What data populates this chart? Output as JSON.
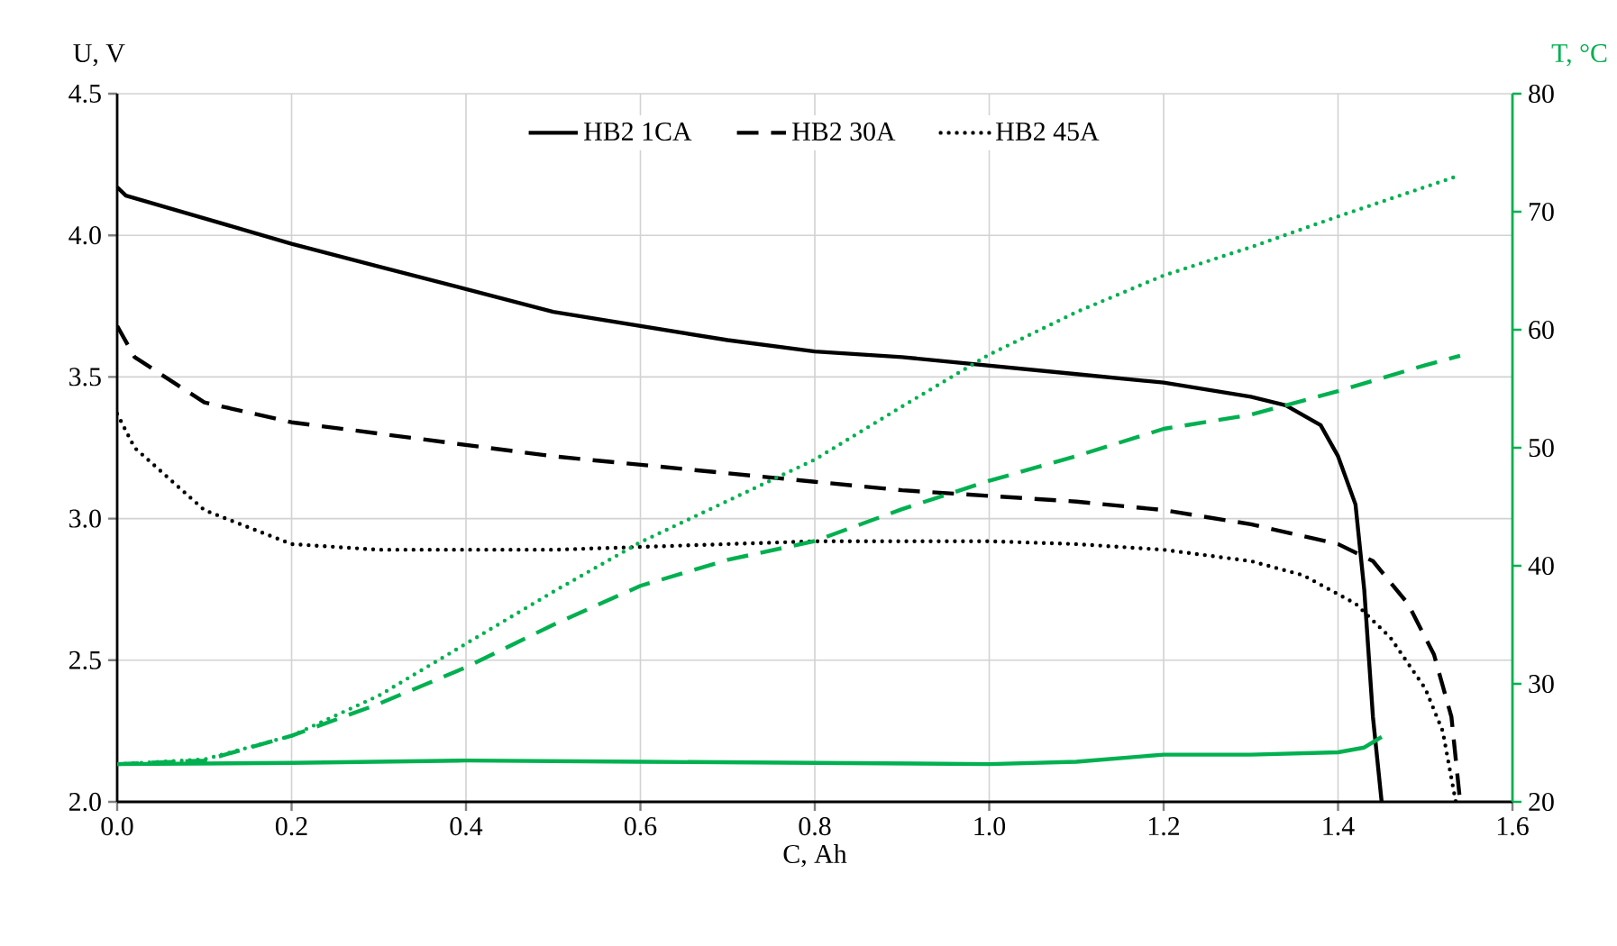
{
  "chart_data": {
    "type": "line",
    "xlabel": "C, Ah",
    "ylabel": "U, V",
    "y2label": "T, °C",
    "xlim": [
      0,
      1.6
    ],
    "xticks": [
      {
        "value": 0,
        "label": "0.0"
      },
      {
        "value": 0.2,
        "label": "0.2"
      },
      {
        "value": 0.4,
        "label": "0.4"
      },
      {
        "value": 0.6,
        "label": "0.6"
      },
      {
        "value": 0.8,
        "label": "0.8"
      },
      {
        "value": 1.0,
        "label": "1.0"
      },
      {
        "value": 1.2,
        "label": "1.2"
      },
      {
        "value": 1.4,
        "label": "1.4"
      },
      {
        "value": 1.6,
        "label": "1.6"
      }
    ],
    "ylim": [
      2,
      4.5
    ],
    "yticks": [
      {
        "value": 2,
        "label": "2.0"
      },
      {
        "value": 2.5,
        "label": "2.5"
      },
      {
        "value": 3,
        "label": "3.0"
      },
      {
        "value": 3.5,
        "label": "3.5"
      },
      {
        "value": 4,
        "label": "4.0"
      },
      {
        "value": 4.5,
        "label": "4.5"
      }
    ],
    "y2lim": [
      20,
      80
    ],
    "y2ticks": [
      20,
      30,
      40,
      50,
      60,
      70,
      80
    ],
    "grid": true,
    "legend": "top",
    "marker": "none",
    "series": [
      {
        "name": "HB2 1CA",
        "color": "#000000",
        "line_style": "solid",
        "x": [
          0,
          0.01,
          0.1,
          0.2,
          0.3,
          0.4,
          0.5,
          0.6,
          0.7,
          0.8,
          0.9,
          1.0,
          1.1,
          1.2,
          1.3,
          1.34,
          1.38,
          1.4,
          1.42,
          1.43,
          1.44,
          1.45
        ],
        "values": [
          4.17,
          4.14,
          4.06,
          3.97,
          3.89,
          3.81,
          3.73,
          3.68,
          3.63,
          3.59,
          3.57,
          3.54,
          3.51,
          3.48,
          3.43,
          3.4,
          3.33,
          3.22,
          3.05,
          2.75,
          2.3,
          2.0
        ]
      },
      {
        "name": "HB2 30A",
        "color": "#000000",
        "line_style": "dashed",
        "x": [
          0,
          0.02,
          0.1,
          0.2,
          0.3,
          0.4,
          0.5,
          0.6,
          0.7,
          0.8,
          0.9,
          1.0,
          1.1,
          1.2,
          1.3,
          1.4,
          1.44,
          1.48,
          1.51,
          1.53,
          1.54
        ],
        "values": [
          3.68,
          3.57,
          3.41,
          3.34,
          3.3,
          3.26,
          3.22,
          3.19,
          3.16,
          3.13,
          3.1,
          3.08,
          3.06,
          3.03,
          2.98,
          2.91,
          2.85,
          2.7,
          2.52,
          2.3,
          2.0
        ]
      },
      {
        "name": "HB2 45A",
        "color": "#000000",
        "line_style": "dotted",
        "x": [
          0,
          0.02,
          0.1,
          0.2,
          0.3,
          0.4,
          0.5,
          0.6,
          0.7,
          0.8,
          0.9,
          1.0,
          1.1,
          1.2,
          1.3,
          1.36,
          1.42,
          1.46,
          1.5,
          1.52,
          1.535
        ],
        "values": [
          3.37,
          3.25,
          3.03,
          2.91,
          2.89,
          2.89,
          2.89,
          2.9,
          2.91,
          2.92,
          2.92,
          2.92,
          2.91,
          2.89,
          2.85,
          2.8,
          2.7,
          2.58,
          2.4,
          2.25,
          2.0
        ]
      },
      {
        "color": "#00b050",
        "line_style": "solid",
        "axis": "y2",
        "x": [
          0,
          0.2,
          0.4,
          0.6,
          0.8,
          1.0,
          1.1,
          1.2,
          1.3,
          1.4,
          1.43,
          1.45
        ],
        "values": [
          23.2,
          23.3,
          23.5,
          23.4,
          23.3,
          23.2,
          23.4,
          24.0,
          24.0,
          24.2,
          24.6,
          25.5
        ]
      },
      {
        "color": "#00b050",
        "line_style": "dashed",
        "axis": "y2",
        "x": [
          0,
          0.1,
          0.2,
          0.3,
          0.4,
          0.5,
          0.6,
          0.7,
          0.8,
          0.9,
          1.0,
          1.1,
          1.2,
          1.3,
          1.4,
          1.5,
          1.54
        ],
        "values": [
          23.2,
          23.5,
          25.6,
          28.3,
          31.4,
          35,
          38.3,
          40.5,
          42.1,
          44.8,
          47.2,
          49.3,
          51.6,
          52.8,
          54.8,
          57,
          57.8
        ]
      },
      {
        "color": "#00b050",
        "line_style": "dotted",
        "axis": "y2",
        "x": [
          0,
          0.1,
          0.2,
          0.3,
          0.4,
          0.5,
          0.6,
          0.7,
          0.8,
          0.9,
          1.0,
          1.1,
          1.2,
          1.3,
          1.4,
          1.54
        ],
        "values": [
          23.2,
          23.6,
          25.6,
          29,
          33.4,
          37.8,
          42,
          45.5,
          49,
          53.5,
          57.9,
          61.5,
          64.6,
          67,
          69.6,
          73.1
        ]
      }
    ]
  }
}
